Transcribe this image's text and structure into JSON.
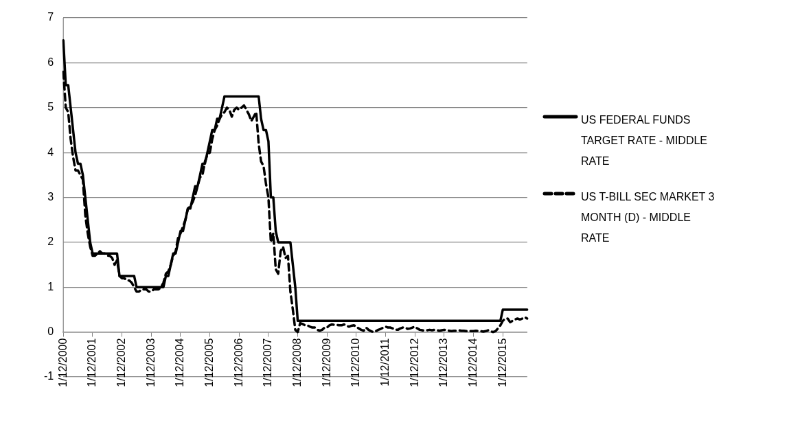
{
  "chart_data": {
    "type": "line",
    "categories": [
      "1/12/2000",
      null,
      null,
      null,
      null,
      null,
      null,
      null,
      null,
      null,
      null,
      null,
      "1/12/2001",
      null,
      null,
      null,
      null,
      null,
      null,
      null,
      null,
      null,
      null,
      null,
      "1/12/2002",
      null,
      null,
      null,
      null,
      null,
      null,
      null,
      null,
      null,
      null,
      null,
      "1/12/2003",
      null,
      null,
      null,
      null,
      null,
      null,
      null,
      null,
      null,
      null,
      null,
      "1/12/2004",
      null,
      null,
      null,
      null,
      null,
      null,
      null,
      null,
      null,
      null,
      null,
      "1/12/2005",
      null,
      null,
      null,
      null,
      null,
      null,
      null,
      null,
      null,
      null,
      null,
      "1/12/2006",
      null,
      null,
      null,
      null,
      null,
      null,
      null,
      null,
      null,
      null,
      null,
      "1/12/2007",
      null,
      null,
      null,
      null,
      null,
      null,
      null,
      null,
      null,
      null,
      null,
      "1/12/2008",
      null,
      null,
      null,
      null,
      null,
      null,
      null,
      null,
      null,
      null,
      null,
      "1/12/2009",
      null,
      null,
      null,
      null,
      null,
      null,
      null,
      null,
      null,
      null,
      null,
      "1/12/2010",
      null,
      null,
      null,
      null,
      null,
      null,
      null,
      null,
      null,
      null,
      null,
      "1/12/2011",
      null,
      null,
      null,
      null,
      null,
      null,
      null,
      null,
      null,
      null,
      null,
      "1/12/2012",
      null,
      null,
      null,
      null,
      null,
      null,
      null,
      null,
      null,
      null,
      null,
      "1/12/2013",
      null,
      null,
      null,
      null,
      null,
      null,
      null,
      null,
      null,
      null,
      null,
      "1/12/2014",
      null,
      null,
      null,
      null,
      null,
      null,
      null,
      null,
      null,
      null,
      null,
      "1/12/2015",
      null,
      null,
      null,
      null,
      null,
      null,
      null,
      null,
      null,
      null
    ],
    "series": [
      {
        "name": "US FEDERAL FUNDS TARGET RATE - MIDDLE RATE",
        "color": "#000000",
        "line_style": "solid",
        "values": [
          6.5,
          5.5,
          5.5,
          5.0,
          4.5,
          4.0,
          3.75,
          3.75,
          3.5,
          3.0,
          2.5,
          2.0,
          1.75,
          1.75,
          1.75,
          1.75,
          1.75,
          1.75,
          1.75,
          1.75,
          1.75,
          1.75,
          1.75,
          1.25,
          1.25,
          1.25,
          1.25,
          1.25,
          1.25,
          1.25,
          1.0,
          1.0,
          1.0,
          1.0,
          1.0,
          1.0,
          1.0,
          1.0,
          1.0,
          1.0,
          1.0,
          1.0,
          1.25,
          1.25,
          1.5,
          1.75,
          1.75,
          2.0,
          2.25,
          2.25,
          2.5,
          2.75,
          2.75,
          3.0,
          3.25,
          3.25,
          3.5,
          3.75,
          3.75,
          4.0,
          4.25,
          4.5,
          4.5,
          4.75,
          4.75,
          5.0,
          5.25,
          5.25,
          5.25,
          5.25,
          5.25,
          5.25,
          5.25,
          5.25,
          5.25,
          5.25,
          5.25,
          5.25,
          5.25,
          5.25,
          5.25,
          4.75,
          4.5,
          4.5,
          4.25,
          3.0,
          3.0,
          2.25,
          2.0,
          2.0,
          2.0,
          2.0,
          2.0,
          2.0,
          1.5,
          1.0,
          0.25,
          0.25,
          0.25,
          0.25,
          0.25,
          0.25,
          0.25,
          0.25,
          0.25,
          0.25,
          0.25,
          0.25,
          0.25,
          0.25,
          0.25,
          0.25,
          0.25,
          0.25,
          0.25,
          0.25,
          0.25,
          0.25,
          0.25,
          0.25,
          0.25,
          0.25,
          0.25,
          0.25,
          0.25,
          0.25,
          0.25,
          0.25,
          0.25,
          0.25,
          0.25,
          0.25,
          0.25,
          0.25,
          0.25,
          0.25,
          0.25,
          0.25,
          0.25,
          0.25,
          0.25,
          0.25,
          0.25,
          0.25,
          0.25,
          0.25,
          0.25,
          0.25,
          0.25,
          0.25,
          0.25,
          0.25,
          0.25,
          0.25,
          0.25,
          0.25,
          0.25,
          0.25,
          0.25,
          0.25,
          0.25,
          0.25,
          0.25,
          0.25,
          0.25,
          0.25,
          0.25,
          0.25,
          0.25,
          0.25,
          0.25,
          0.25,
          0.25,
          0.25,
          0.25,
          0.25,
          0.25,
          0.25,
          0.25,
          0.25,
          0.5,
          0.5,
          0.5,
          0.5,
          0.5,
          0.5,
          0.5,
          0.5,
          0.5,
          0.5,
          0.5
        ]
      },
      {
        "name": "US T-BILL SEC MARKET 3 MONTH (D) - MIDDLE RATE",
        "color": "#000000",
        "line_style": "dashed",
        "values": [
          5.8,
          5.0,
          4.9,
          4.3,
          3.9,
          3.6,
          3.6,
          3.5,
          3.4,
          2.6,
          2.2,
          1.9,
          1.7,
          1.7,
          1.75,
          1.8,
          1.75,
          1.75,
          1.7,
          1.7,
          1.65,
          1.5,
          1.6,
          1.25,
          1.2,
          1.2,
          1.15,
          1.15,
          1.1,
          1.0,
          0.9,
          0.9,
          0.95,
          0.95,
          0.95,
          0.9,
          0.9,
          0.95,
          0.95,
          0.95,
          1.0,
          1.1,
          1.3,
          1.35,
          1.5,
          1.7,
          1.8,
          2.1,
          2.2,
          2.35,
          2.5,
          2.75,
          2.8,
          2.9,
          3.05,
          3.25,
          3.45,
          3.5,
          3.8,
          3.95,
          4.0,
          4.3,
          4.5,
          4.6,
          4.75,
          4.85,
          4.9,
          5.0,
          4.95,
          4.8,
          4.95,
          5.0,
          4.95,
          5.0,
          5.05,
          4.95,
          4.85,
          4.7,
          4.8,
          4.9,
          4.2,
          3.8,
          3.7,
          3.3,
          3.0,
          2.0,
          2.2,
          1.4,
          1.3,
          1.8,
          1.9,
          1.65,
          1.7,
          0.9,
          0.5,
          0.05,
          0.0,
          0.2,
          0.18,
          0.15,
          0.15,
          0.12,
          0.1,
          0.1,
          0.05,
          0.03,
          0.05,
          0.1,
          0.1,
          0.15,
          0.17,
          0.16,
          0.16,
          0.15,
          0.15,
          0.17,
          0.14,
          0.12,
          0.14,
          0.15,
          0.12,
          0.08,
          0.05,
          0.03,
          0.1,
          0.05,
          0.02,
          0.0,
          0.02,
          0.05,
          0.07,
          0.1,
          0.12,
          0.1,
          0.1,
          0.08,
          0.05,
          0.05,
          0.08,
          0.1,
          0.1,
          0.07,
          0.08,
          0.1,
          0.12,
          0.08,
          0.05,
          0.04,
          0.03,
          0.04,
          0.05,
          0.04,
          0.05,
          0.04,
          0.03,
          0.04,
          0.05,
          0.04,
          0.03,
          0.02,
          0.03,
          0.03,
          0.04,
          0.03,
          0.03,
          0.02,
          0.03,
          0.02,
          0.02,
          0.03,
          0.02,
          0.02,
          0.01,
          0.02,
          0.04,
          0.02,
          0.0,
          0.02,
          0.08,
          0.15,
          0.25,
          0.3,
          0.3,
          0.22,
          0.25,
          0.28,
          0.3,
          0.28,
          0.3,
          0.33,
          0.3
        ]
      }
    ],
    "ylim": [
      -1,
      7
    ],
    "yticks": [
      -1,
      0,
      1,
      2,
      3,
      4,
      5,
      6,
      7
    ],
    "grid": "y",
    "legend": "right",
    "marker": "none"
  }
}
